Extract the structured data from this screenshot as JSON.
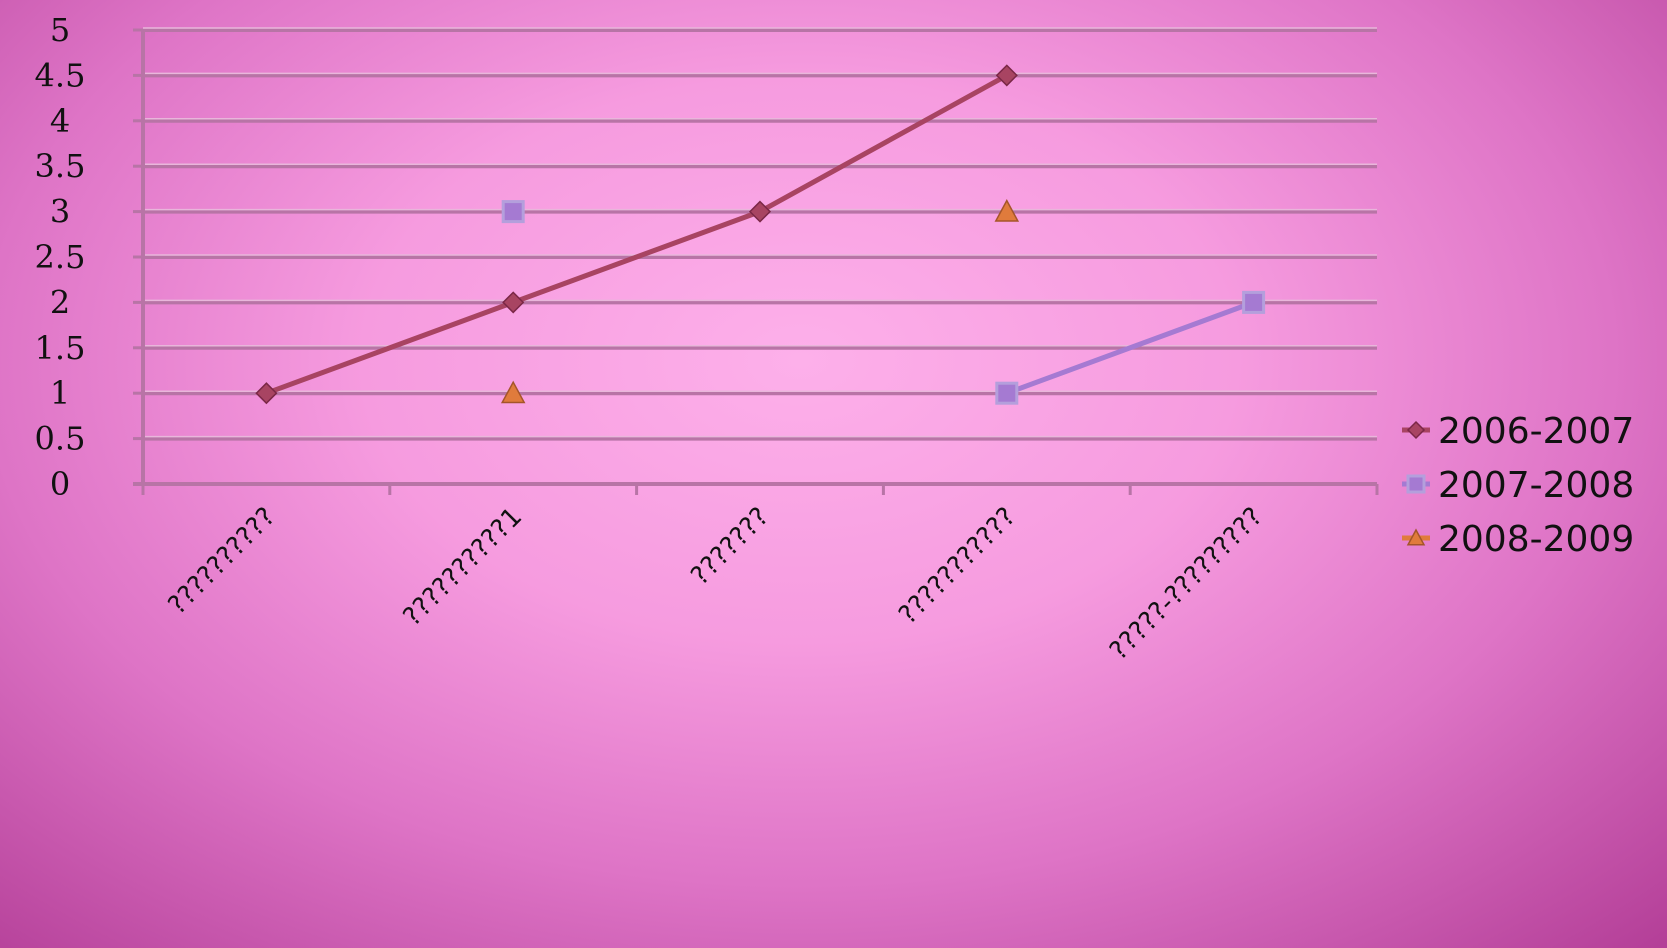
{
  "chart_data": {
    "type": "line",
    "categories": [
      "??????????",
      "??????????1",
      "???????",
      "???????????",
      "?????-?????????"
    ],
    "ylim": [
      0,
      5
    ],
    "yticks": [
      "0",
      "0.5",
      "1",
      "1.5",
      "2",
      "2.5",
      "3",
      "3.5",
      "4",
      "4.5",
      "5"
    ],
    "grid": true,
    "legend_position": "right",
    "series": [
      {
        "name": "2006-2007",
        "values": [
          1,
          2,
          3,
          4.5,
          null
        ],
        "color": "#a84462",
        "marker": "diamond"
      },
      {
        "name": "2007-2008",
        "values": [
          null,
          3,
          null,
          1,
          2
        ],
        "color": "#a57ad2",
        "marker": "square"
      },
      {
        "name": "2008-2009",
        "values": [
          null,
          1,
          null,
          3,
          null
        ],
        "color": "#e07b3c",
        "marker": "triangle"
      }
    ]
  }
}
